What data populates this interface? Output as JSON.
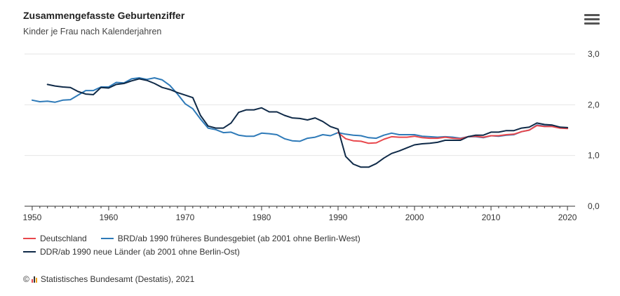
{
  "header": {
    "title": "Zusammengefasste Geburtenziffer",
    "subtitle": "Kinder je Frau nach Kalenderjahren",
    "menu_icon": "hamburger-menu-icon"
  },
  "credit": {
    "copyright_symbol": "©",
    "logo_icon": "destatis-logo-icon",
    "text": "Statistisches Bundesamt (Destatis), 2021"
  },
  "colors": {
    "deutschland": "#e8474c",
    "brd": "#2e7ab8",
    "ddr": "#0f2a48",
    "grid": "#e6e6e6",
    "axis": "#333333"
  },
  "chart_data": {
    "type": "line",
    "title": "Zusammengefasste Geburtenziffer",
    "subtitle": "Kinder je Frau nach Kalenderjahren",
    "xlim": [
      1949,
      2021
    ],
    "ylim": [
      0,
      3
    ],
    "x_ticks": [
      1950,
      1960,
      1970,
      1980,
      1990,
      2000,
      2010,
      2020
    ],
    "y_ticks": [
      0,
      1,
      2,
      3
    ],
    "y_tick_labels": [
      "0,0",
      "1,0",
      "2,0",
      "3,0"
    ],
    "grid": "horizontal",
    "legend_position": "bottom-left",
    "series": [
      {
        "name": "Deutschland",
        "color": "#e8474c",
        "x": [
          1990,
          1991,
          1992,
          1993,
          1994,
          1995,
          1996,
          1997,
          1998,
          1999,
          2000,
          2001,
          2002,
          2003,
          2004,
          2005,
          2006,
          2007,
          2008,
          2009,
          2010,
          2011,
          2012,
          2013,
          2014,
          2015,
          2016,
          2017,
          2018,
          2019,
          2020
        ],
        "y": [
          1.45,
          1.33,
          1.29,
          1.28,
          1.24,
          1.25,
          1.32,
          1.37,
          1.36,
          1.36,
          1.38,
          1.35,
          1.34,
          1.34,
          1.36,
          1.34,
          1.33,
          1.37,
          1.38,
          1.36,
          1.39,
          1.39,
          1.41,
          1.42,
          1.47,
          1.5,
          1.59,
          1.57,
          1.57,
          1.54,
          1.53
        ]
      },
      {
        "name": "BRD/ab 1990 früheres Bundesgebiet (ab 2001 ohne Berlin-West)",
        "color": "#2e7ab8",
        "x": [
          1950,
          1951,
          1952,
          1953,
          1954,
          1955,
          1956,
          1957,
          1958,
          1959,
          1960,
          1961,
          1962,
          1963,
          1964,
          1965,
          1966,
          1967,
          1968,
          1969,
          1970,
          1971,
          1972,
          1973,
          1974,
          1975,
          1976,
          1977,
          1978,
          1979,
          1980,
          1981,
          1982,
          1983,
          1984,
          1985,
          1986,
          1987,
          1988,
          1989,
          1990,
          1991,
          1992,
          1993,
          1994,
          1995,
          1996,
          1997,
          1998,
          1999,
          2000,
          2001,
          2002,
          2003,
          2004,
          2005,
          2006,
          2007,
          2008,
          2009,
          2010,
          2011,
          2012,
          2013,
          2014,
          2015,
          2016,
          2017,
          2018,
          2019,
          2020
        ],
        "y": [
          2.09,
          2.06,
          2.07,
          2.05,
          2.09,
          2.1,
          2.19,
          2.28,
          2.28,
          2.35,
          2.35,
          2.44,
          2.43,
          2.51,
          2.53,
          2.5,
          2.53,
          2.49,
          2.38,
          2.21,
          2.02,
          1.92,
          1.72,
          1.54,
          1.51,
          1.45,
          1.46,
          1.4,
          1.38,
          1.38,
          1.44,
          1.43,
          1.41,
          1.33,
          1.29,
          1.28,
          1.34,
          1.36,
          1.41,
          1.39,
          1.45,
          1.42,
          1.4,
          1.39,
          1.35,
          1.34,
          1.4,
          1.44,
          1.41,
          1.41,
          1.41,
          1.38,
          1.37,
          1.36,
          1.37,
          1.36,
          1.34,
          1.37,
          1.37,
          1.35,
          1.39,
          1.38,
          1.4,
          1.41,
          1.47,
          1.5,
          1.6,
          1.58,
          1.58,
          1.56,
          1.54
        ]
      },
      {
        "name": "DDR/ab 1990 neue Länder (ab 2001 ohne Berlin-Ost)",
        "color": "#0f2a48",
        "x": [
          1952,
          1953,
          1954,
          1955,
          1956,
          1957,
          1958,
          1959,
          1960,
          1961,
          1962,
          1963,
          1964,
          1965,
          1966,
          1967,
          1968,
          1969,
          1970,
          1971,
          1972,
          1973,
          1974,
          1975,
          1976,
          1977,
          1978,
          1979,
          1980,
          1981,
          1982,
          1983,
          1984,
          1985,
          1986,
          1987,
          1988,
          1989,
          1990,
          1991,
          1992,
          1993,
          1994,
          1995,
          1996,
          1997,
          1998,
          1999,
          2000,
          2001,
          2002,
          2003,
          2004,
          2005,
          2006,
          2007,
          2008,
          2009,
          2010,
          2011,
          2012,
          2013,
          2014,
          2015,
          2016,
          2017,
          2018,
          2019,
          2020
        ],
        "y": [
          2.4,
          2.37,
          2.35,
          2.34,
          2.26,
          2.21,
          2.2,
          2.34,
          2.33,
          2.4,
          2.42,
          2.47,
          2.51,
          2.48,
          2.42,
          2.34,
          2.3,
          2.24,
          2.19,
          2.14,
          1.79,
          1.58,
          1.54,
          1.54,
          1.64,
          1.85,
          1.9,
          1.9,
          1.94,
          1.86,
          1.86,
          1.79,
          1.74,
          1.73,
          1.7,
          1.74,
          1.67,
          1.57,
          1.52,
          0.98,
          0.83,
          0.77,
          0.77,
          0.84,
          0.95,
          1.04,
          1.09,
          1.15,
          1.21,
          1.23,
          1.24,
          1.26,
          1.3,
          1.3,
          1.3,
          1.37,
          1.4,
          1.4,
          1.46,
          1.46,
          1.49,
          1.49,
          1.54,
          1.56,
          1.64,
          1.61,
          1.6,
          1.56,
          1.55
        ]
      }
    ]
  }
}
